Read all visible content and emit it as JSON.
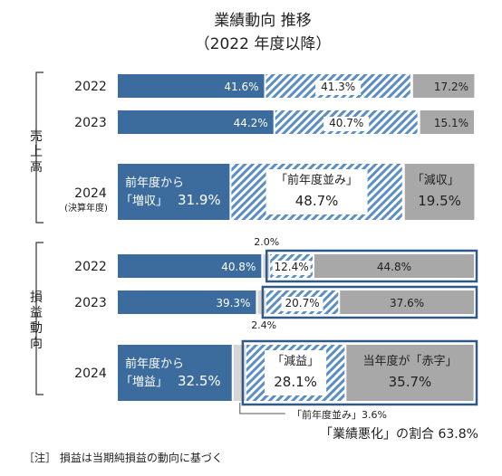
{
  "title": "業績動向 推移",
  "subtitle": "（2022 年度以降）",
  "groups": [
    {
      "label": "売上高",
      "bracket": "sales-bracket"
    },
    {
      "label": "損益動向",
      "bracket": "profit-bracket"
    }
  ],
  "colors": {
    "blue": "#3b6c9d",
    "hatch_light": "#ffffff",
    "hatch_blue": "#5b8ec4",
    "gray": "#a8a8a8",
    "frame": "#2f5a88",
    "dash": "#444444"
  },
  "chart_data": {
    "type": "bar",
    "stacked": true,
    "orientation": "horizontal",
    "unit": "%",
    "categories_sales": [
      "2022",
      "2023",
      "2024"
    ],
    "sales": [
      {
        "year": "2022",
        "values": [
          41.6,
          41.3,
          17.2
        ],
        "labels": [
          "41.6%",
          "41.3%",
          "17.2%"
        ]
      },
      {
        "year": "2023",
        "values": [
          44.2,
          40.7,
          15.1
        ],
        "labels": [
          "44.2%",
          "40.7%",
          "15.1%"
        ]
      },
      {
        "year": "2024",
        "note": "(決算年度)",
        "values": [
          31.9,
          48.7,
          19.5
        ],
        "labels": [
          "31.9%",
          "48.7%",
          "19.5%"
        ],
        "captions": [
          "前年度から",
          "「増収」",
          "「前年度並み」",
          "「減収」"
        ]
      }
    ],
    "profit": [
      {
        "year": "2022",
        "values": [
          40.8,
          2.0,
          12.4,
          44.8
        ],
        "labels": [
          "40.8%",
          "2.0%",
          "12.4%",
          "44.8%"
        ]
      },
      {
        "year": "2023",
        "values": [
          39.3,
          2.4,
          20.7,
          37.6
        ],
        "labels": [
          "39.3%",
          "2.4%",
          "20.7%",
          "37.6%"
        ]
      },
      {
        "year": "2024",
        "values": [
          32.5,
          3.6,
          28.1,
          35.7
        ],
        "labels": [
          "32.5%",
          "3.6%",
          "28.1%",
          "35.7%"
        ],
        "captions": [
          "前年度から",
          "「増益」",
          "「減益」",
          "当年度が「赤字」"
        ]
      }
    ],
    "annotations": {
      "zero_line_2024": "「前年度並み」3.6%",
      "deterioration": "「業績悪化」の割合 63.8%"
    }
  },
  "footnote": "［注］ 損益は当期純損益の動向に基づく"
}
